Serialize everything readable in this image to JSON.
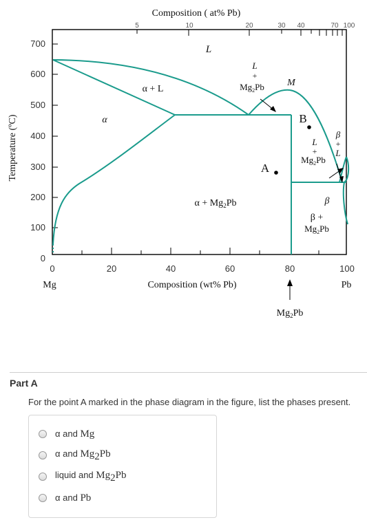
{
  "diagram": {
    "top_axis": {
      "title": "Composition ( at% Pb)",
      "ticks": [
        "5",
        "10",
        "20",
        "30",
        "40",
        "70",
        "100"
      ]
    },
    "y_axis": {
      "title": "Temperature (ºC)",
      "ticks": [
        "700",
        "600",
        "500",
        "400",
        "300",
        "200",
        "100",
        "0"
      ]
    },
    "bottom_axis": {
      "title": "Composition (wt% Pb)",
      "ticks": [
        "0",
        "20",
        "40",
        "60",
        "80",
        "100"
      ],
      "left_end": "Mg",
      "right_end": "Pb"
    },
    "compound_label": "Mg",
    "compound_sub": "2",
    "compound_tail": "Pb",
    "regions": {
      "liquid": "L",
      "alpha_liquid_a": "α + L",
      "alpha": "α",
      "l_mg2pb_l": "L",
      "l_mg2pb_plus": "+",
      "l_mg2pb_mg": "Mg",
      "l_mg2pb_pb": "Pb",
      "maximum": "M",
      "l_mg2pb_right_l": "L",
      "l_mg2pb_right_plus": "+",
      "beta_l_beta": "β",
      "beta_l_plus": "+",
      "beta_l_l": "L",
      "alpha_mg2pb": "α + Mg",
      "beta_region": "β",
      "beta_mg2pb_beta": "β +",
      "point_a": "A",
      "point_b": "B"
    },
    "colors": {
      "phase_lines": "#1a9b8c",
      "frame": "#000000"
    }
  },
  "part": {
    "title": "Part A",
    "question": "For the point A marked in the phase diagram in the figure, list the phases present.",
    "options": [
      {
        "pre": "α and ",
        "main": "Mg",
        "sub": "",
        "post": ""
      },
      {
        "pre": "α and ",
        "main": "Mg",
        "sub": "2",
        "post": "Pb"
      },
      {
        "pre": "liquid and ",
        "main": "Mg",
        "sub": "2",
        "post": "Pb"
      },
      {
        "pre": "α and ",
        "main": "Pb",
        "sub": "",
        "post": ""
      }
    ]
  }
}
